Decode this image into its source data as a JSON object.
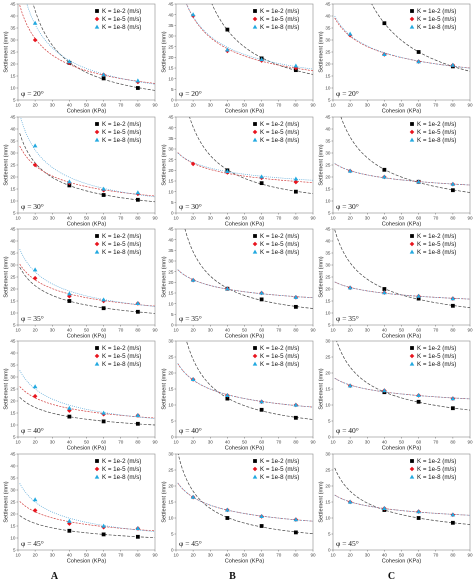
{
  "legend": [
    "K = 1e-2 (m/s)",
    "K = 1e-5 (m/s)",
    "K = 1e-8 (m/s)"
  ],
  "colors": {
    "s1": "#000000",
    "s2": "#e8141e",
    "s3": "#22a9e0",
    "fit1": "#444444",
    "fit2": "#d24040",
    "fit3": "#5aa8d8"
  },
  "columns": [
    "A",
    "B",
    "C"
  ],
  "rows": [
    "φ = 20°",
    "φ = 30°",
    "φ = 35°",
    "φ = 40°",
    "φ = 45°"
  ],
  "chart_data": [
    {
      "id": "A1",
      "type": "scatter",
      "xlabel": "Cohesion (KPa)",
      "ylabel": "Settlement (mm)",
      "xlim": [
        10,
        90
      ],
      "ylim": [
        5,
        45
      ],
      "xticks": [
        10,
        20,
        30,
        40,
        50,
        60,
        70,
        80,
        90
      ],
      "yticks": [
        5,
        10,
        15,
        20,
        25,
        30,
        35,
        40,
        45
      ],
      "annotation": "φ = 20°",
      "x": [
        20,
        40,
        60,
        80
      ],
      "series": [
        {
          "name": "K = 1e-2 (m/s)",
          "values": [
            null,
            20.5,
            14,
            10
          ]
        },
        {
          "name": "K = 1e-5 (m/s)",
          "values": [
            30,
            20.5,
            15.5,
            12.5
          ]
        },
        {
          "name": "K = 1e-8 (m/s)",
          "values": [
            37,
            21,
            15.5,
            13
          ]
        }
      ]
    },
    {
      "id": "B1",
      "type": "scatter",
      "xlabel": "Cohesion (KPa)",
      "ylabel": "Settlement (mm)",
      "xlim": [
        10,
        90
      ],
      "ylim": [
        0,
        45
      ],
      "xticks": [
        10,
        20,
        30,
        40,
        50,
        60,
        70,
        80,
        90
      ],
      "yticks": [
        0,
        5,
        10,
        15,
        20,
        25,
        30,
        35,
        40,
        45
      ],
      "annotation": "φ = 20°",
      "x": [
        20,
        40,
        60,
        80
      ],
      "series": [
        {
          "name": "K = 1e-2 (m/s)",
          "values": [
            null,
            33,
            19.5,
            14
          ]
        },
        {
          "name": "K = 1e-5 (m/s)",
          "values": [
            39.5,
            23,
            18.5,
            15
          ]
        },
        {
          "name": "K = 1e-8 (m/s)",
          "values": [
            40,
            23.5,
            19,
            16
          ]
        }
      ]
    },
    {
      "id": "C1",
      "type": "scatter",
      "xlabel": "Cohesion (KPa)",
      "ylabel": "Settlement (mm)",
      "xlim": [
        10,
        90
      ],
      "ylim": [
        5,
        45
      ],
      "xticks": [
        10,
        20,
        30,
        40,
        50,
        60,
        70,
        80,
        90
      ],
      "yticks": [
        5,
        10,
        15,
        20,
        25,
        30,
        35,
        40,
        45
      ],
      "annotation": "φ = 20°",
      "x": [
        20,
        40,
        60,
        80
      ],
      "series": [
        {
          "name": "K = 1e-2 (m/s)",
          "values": [
            null,
            37,
            25,
            19
          ]
        },
        {
          "name": "K = 1e-5 (m/s)",
          "values": [
            32,
            24,
            21,
            19.5
          ]
        },
        {
          "name": "K = 1e-8 (m/s)",
          "values": [
            32.5,
            24,
            21,
            19.5
          ]
        }
      ]
    },
    {
      "id": "A2",
      "type": "scatter",
      "xlabel": "Cohesion (KPa)",
      "ylabel": "Settlement (mm)",
      "xlim": [
        10,
        90
      ],
      "ylim": [
        5,
        45
      ],
      "xticks": [
        10,
        20,
        30,
        40,
        50,
        60,
        70,
        80,
        90
      ],
      "yticks": [
        5,
        10,
        15,
        20,
        25,
        30,
        35,
        40,
        45
      ],
      "annotation": "φ = 30°",
      "x": [
        20,
        40,
        60,
        80
      ],
      "series": [
        {
          "name": "K = 1e-2 (m/s)",
          "values": [
            null,
            16.5,
            12.5,
            10.5
          ]
        },
        {
          "name": "K = 1e-5 (m/s)",
          "values": [
            25,
            17.5,
            14.5,
            13
          ]
        },
        {
          "name": "K = 1e-8 (m/s)",
          "values": [
            33,
            18,
            15,
            13.5
          ]
        }
      ]
    },
    {
      "id": "B2",
      "type": "scatter",
      "xlabel": "Cohesion (KPa)",
      "ylabel": "Settlement (mm)",
      "xlim": [
        10,
        90
      ],
      "ylim": [
        0,
        45
      ],
      "xticks": [
        10,
        20,
        30,
        40,
        50,
        60,
        70,
        80,
        90
      ],
      "yticks": [
        0,
        5,
        10,
        15,
        20,
        25,
        30,
        35,
        40,
        45
      ],
      "annotation": "φ = 30°",
      "x": [
        20,
        40,
        60,
        80
      ],
      "series": [
        {
          "name": "K = 1e-2 (m/s)",
          "values": [
            null,
            20,
            14,
            10
          ]
        },
        {
          "name": "K = 1e-5 (m/s)",
          "values": [
            23,
            19,
            16.5,
            14.5
          ]
        },
        {
          "name": "K = 1e-8 (m/s)",
          "values": [
            null,
            19.5,
            17,
            16
          ]
        }
      ]
    },
    {
      "id": "C2",
      "type": "scatter",
      "xlabel": "Cohesion (KPa)",
      "ylabel": "Settlement (mm)",
      "xlim": [
        10,
        90
      ],
      "ylim": [
        5,
        45
      ],
      "xticks": [
        10,
        20,
        30,
        40,
        50,
        60,
        70,
        80,
        90
      ],
      "yticks": [
        5,
        10,
        15,
        20,
        25,
        30,
        35,
        40,
        45
      ],
      "annotation": "φ = 30°",
      "x": [
        20,
        40,
        60,
        80
      ],
      "series": [
        {
          "name": "K = 1e-2 (m/s)",
          "values": [
            null,
            23,
            18,
            14.5
          ]
        },
        {
          "name": "K = 1e-5 (m/s)",
          "values": [
            22.5,
            20,
            18,
            17
          ]
        },
        {
          "name": "K = 1e-8 (m/s)",
          "values": [
            22.5,
            20,
            18,
            17
          ]
        }
      ]
    },
    {
      "id": "A3",
      "type": "scatter",
      "xlabel": "Cohesion (KPa)",
      "ylabel": "Settlement (mm)",
      "xlim": [
        10,
        90
      ],
      "ylim": [
        5,
        45
      ],
      "xticks": [
        10,
        20,
        30,
        40,
        50,
        60,
        70,
        80,
        90
      ],
      "yticks": [
        5,
        10,
        15,
        20,
        25,
        30,
        35,
        40,
        45
      ],
      "annotation": "φ = 35°",
      "x": [
        20,
        40,
        60,
        80
      ],
      "series": [
        {
          "name": "K = 1e-2 (m/s)",
          "values": [
            null,
            15,
            12,
            10.5
          ]
        },
        {
          "name": "K = 1e-5 (m/s)",
          "values": [
            24.5,
            17,
            15,
            14
          ]
        },
        {
          "name": "K = 1e-8 (m/s)",
          "values": [
            28,
            18,
            15.5,
            14
          ]
        }
      ]
    },
    {
      "id": "B3",
      "type": "scatter",
      "xlabel": "Cohesion (KPa)",
      "ylabel": "Settlement (mm)",
      "xlim": [
        10,
        90
      ],
      "ylim": [
        0,
        45
      ],
      "xticks": [
        10,
        20,
        30,
        40,
        50,
        60,
        70,
        80,
        90
      ],
      "yticks": [
        0,
        5,
        10,
        15,
        20,
        25,
        30,
        35,
        40,
        45
      ],
      "annotation": "φ = 35°",
      "x": [
        20,
        40,
        60,
        80
      ],
      "series": [
        {
          "name": "K = 1e-2 (m/s)",
          "values": [
            null,
            17,
            12,
            8.5
          ]
        },
        {
          "name": "K = 1e-5 (m/s)",
          "values": [
            21,
            17,
            15,
            13
          ]
        },
        {
          "name": "K = 1e-8 (m/s)",
          "values": [
            21,
            17,
            15,
            13
          ]
        }
      ]
    },
    {
      "id": "C3",
      "type": "scatter",
      "xlabel": "Cohesion (KPa)",
      "ylabel": "Settlement (mm)",
      "xlim": [
        10,
        90
      ],
      "ylim": [
        5,
        45
      ],
      "xticks": [
        10,
        20,
        30,
        40,
        50,
        60,
        70,
        80,
        90
      ],
      "yticks": [
        5,
        10,
        15,
        20,
        25,
        30,
        35,
        40,
        45
      ],
      "annotation": "φ = 35°",
      "x": [
        20,
        40,
        60,
        80
      ],
      "series": [
        {
          "name": "K = 1e-2 (m/s)",
          "values": [
            null,
            20,
            16,
            13
          ]
        },
        {
          "name": "K = 1e-5 (m/s)",
          "values": [
            20.5,
            18.5,
            17,
            16
          ]
        },
        {
          "name": "K = 1e-8 (m/s)",
          "values": [
            20.5,
            18.5,
            17,
            16
          ]
        }
      ]
    },
    {
      "id": "A4",
      "type": "scatter",
      "xlabel": "Cohesion (KPa)",
      "ylabel": "Settlement (mm)",
      "xlim": [
        10,
        90
      ],
      "ylim": [
        5,
        45
      ],
      "xticks": [
        10,
        20,
        30,
        40,
        50,
        60,
        70,
        80,
        90
      ],
      "yticks": [
        5,
        10,
        15,
        20,
        25,
        30,
        35,
        40,
        45
      ],
      "annotation": "φ = 40°",
      "x": [
        20,
        40,
        60,
        80
      ],
      "series": [
        {
          "name": "K = 1e-2 (m/s)",
          "values": [
            null,
            13.5,
            11.5,
            10.5
          ]
        },
        {
          "name": "K = 1e-5 (m/s)",
          "values": [
            22,
            16,
            14.5,
            14
          ]
        },
        {
          "name": "K = 1e-8 (m/s)",
          "values": [
            26,
            17,
            15,
            14
          ]
        }
      ]
    },
    {
      "id": "B4",
      "type": "scatter",
      "xlabel": "Cohesion (KPa)",
      "ylabel": "Settlement (mm)",
      "xlim": [
        10,
        90
      ],
      "ylim": [
        0,
        30
      ],
      "xticks": [
        10,
        20,
        30,
        40,
        50,
        60,
        70,
        80,
        90
      ],
      "yticks": [
        0,
        5,
        10,
        15,
        20,
        25,
        30
      ],
      "annotation": "φ = 40°",
      "x": [
        20,
        40,
        60,
        80
      ],
      "series": [
        {
          "name": "K = 1e-2 (m/s)",
          "values": [
            null,
            12,
            8.5,
            6
          ]
        },
        {
          "name": "K = 1e-5 (m/s)",
          "values": [
            18,
            13,
            11,
            10
          ]
        },
        {
          "name": "K = 1e-8 (m/s)",
          "values": [
            18,
            13,
            11,
            10
          ]
        }
      ]
    },
    {
      "id": "C4",
      "type": "scatter",
      "xlabel": "Cohesion (KPa)",
      "ylabel": "Settlement (mm)",
      "xlim": [
        10,
        90
      ],
      "ylim": [
        0,
        30
      ],
      "xticks": [
        10,
        20,
        30,
        40,
        50,
        60,
        70,
        80,
        90
      ],
      "yticks": [
        0,
        5,
        10,
        15,
        20,
        25,
        30
      ],
      "annotation": "φ = 40°",
      "x": [
        20,
        40,
        60,
        80
      ],
      "series": [
        {
          "name": "K = 1e-2 (m/s)",
          "values": [
            null,
            14,
            11,
            9
          ]
        },
        {
          "name": "K = 1e-5 (m/s)",
          "values": [
            16,
            14.5,
            13,
            12
          ]
        },
        {
          "name": "K = 1e-8 (m/s)",
          "values": [
            16,
            14.5,
            13,
            12
          ]
        }
      ]
    },
    {
      "id": "A5",
      "type": "scatter",
      "xlabel": "Cohesion (KPa)",
      "ylabel": "Settlement (mm)",
      "xlim": [
        10,
        90
      ],
      "ylim": [
        5,
        45
      ],
      "xticks": [
        10,
        20,
        30,
        40,
        50,
        60,
        70,
        80,
        90
      ],
      "yticks": [
        5,
        10,
        15,
        20,
        25,
        30,
        35,
        40,
        45
      ],
      "annotation": "φ = 45°",
      "x": [
        20,
        40,
        60,
        80
      ],
      "series": [
        {
          "name": "K = 1e-2 (m/s)",
          "values": [
            null,
            13,
            11.5,
            10.5
          ]
        },
        {
          "name": "K = 1e-5 (m/s)",
          "values": [
            21.5,
            16,
            14.5,
            14
          ]
        },
        {
          "name": "K = 1e-8 (m/s)",
          "values": [
            26,
            17,
            15,
            14
          ]
        }
      ]
    },
    {
      "id": "B5",
      "type": "scatter",
      "xlabel": "Cohesion (KPa)",
      "ylabel": "Settlement (mm)",
      "xlim": [
        10,
        90
      ],
      "ylim": [
        0,
        30
      ],
      "xticks": [
        10,
        20,
        30,
        40,
        50,
        60,
        70,
        80,
        90
      ],
      "yticks": [
        0,
        5,
        10,
        15,
        20,
        25,
        30
      ],
      "annotation": "φ = 45°",
      "x": [
        20,
        40,
        60,
        80
      ],
      "series": [
        {
          "name": "K = 1e-2 (m/s)",
          "values": [
            null,
            10,
            7.5,
            5.5
          ]
        },
        {
          "name": "K = 1e-5 (m/s)",
          "values": [
            16.5,
            12.5,
            10.5,
            9.5
          ]
        },
        {
          "name": "K = 1e-8 (m/s)",
          "values": [
            16.5,
            12.5,
            10.5,
            9.5
          ]
        }
      ]
    },
    {
      "id": "C5",
      "type": "scatter",
      "xlabel": "Cohesion (KPa)",
      "ylabel": "Settlement (mm)",
      "xlim": [
        10,
        90
      ],
      "ylim": [
        0,
        30
      ],
      "xticks": [
        10,
        20,
        30,
        40,
        50,
        60,
        70,
        80,
        90
      ],
      "yticks": [
        0,
        5,
        10,
        15,
        20,
        25,
        30
      ],
      "annotation": "φ = 45°",
      "x": [
        20,
        40,
        60,
        80
      ],
      "series": [
        {
          "name": "K = 1e-2 (m/s)",
          "values": [
            null,
            12.5,
            10,
            8.5
          ]
        },
        {
          "name": "K = 1e-5 (m/s)",
          "values": [
            15,
            13,
            12,
            11
          ]
        },
        {
          "name": "K = 1e-8 (m/s)",
          "values": [
            15,
            13,
            12,
            11
          ]
        }
      ]
    }
  ]
}
